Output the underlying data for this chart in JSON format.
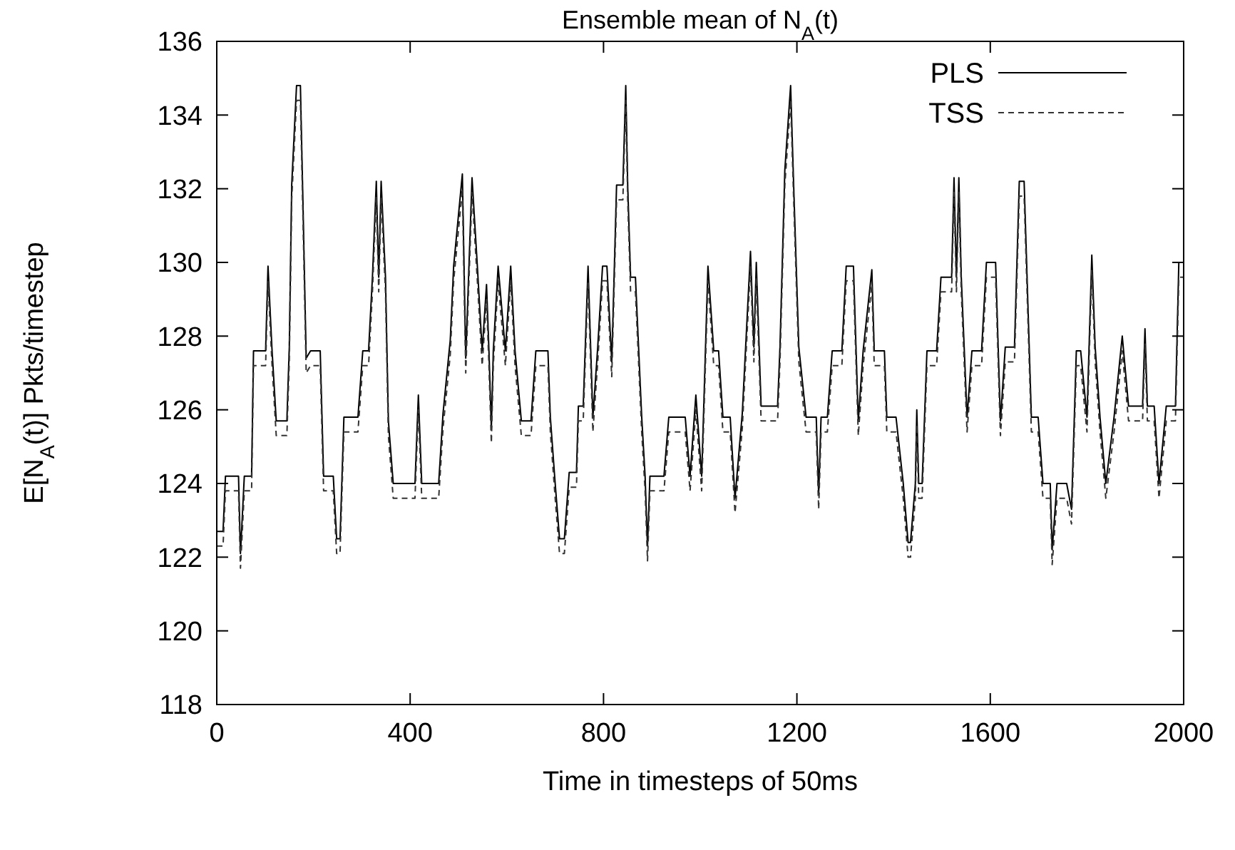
{
  "chart_data": {
    "type": "line",
    "title": "Ensemble mean of N$_{A}$(t)",
    "xlabel": "Time in timesteps of 50ms",
    "ylabel": "E[N$_{A}$(t)] Pkts/timestep",
    "x": [
      0,
      13,
      18,
      45,
      49,
      57,
      72,
      76,
      101,
      106,
      114,
      123,
      145,
      150,
      155,
      165,
      173,
      178,
      185,
      194,
      214,
      221,
      241,
      248,
      255,
      263,
      292,
      302,
      314,
      322,
      330,
      335,
      340,
      349,
      355,
      365,
      410,
      417,
      424,
      459,
      468,
      483,
      490,
      508,
      515,
      528,
      539,
      549,
      558,
      563,
      568,
      572,
      582,
      597,
      608,
      617,
      630,
      650,
      660,
      685,
      690,
      700,
      709,
      719,
      729,
      744,
      748,
      758,
      768,
      778,
      788,
      798,
      807,
      817,
      827,
      840,
      846,
      850,
      856,
      866,
      879,
      886,
      891,
      896,
      925,
      935,
      969,
      979,
      991,
      1003,
      1016,
      1028,
      1038,
      1047,
      1062,
      1072,
      1087,
      1104,
      1111,
      1116,
      1126,
      1160,
      1165,
      1175,
      1187,
      1194,
      1204,
      1219,
      1240,
      1245,
      1250,
      1263,
      1273,
      1293,
      1302,
      1317,
      1327,
      1337,
      1355,
      1360,
      1381,
      1386,
      1405,
      1420,
      1430,
      1435,
      1445,
      1448,
      1452,
      1459,
      1469,
      1489,
      1498,
      1520,
      1525,
      1530,
      1535,
      1540,
      1552,
      1562,
      1582,
      1592,
      1611,
      1621,
      1631,
      1650,
      1660,
      1670,
      1685,
      1699,
      1709,
      1724,
      1728,
      1738,
      1758,
      1768,
      1778,
      1787,
      1800,
      1810,
      1817,
      1827,
      1839,
      1856,
      1873,
      1886,
      1915,
      1920,
      1925,
      1939,
      1949,
      1964,
      1983,
      1990,
      2000
    ],
    "series": [
      {
        "name": "PLS",
        "color": "#000000",
        "line_style": "solid",
        "values": [
          122.7,
          122.7,
          124.2,
          124.2,
          122.1,
          124.2,
          124.2,
          127.6,
          127.6,
          129.9,
          127.7,
          125.7,
          125.7,
          127.7,
          132.1,
          134.8,
          134.8,
          131.8,
          127.4,
          127.6,
          127.6,
          124.2,
          124.2,
          122.5,
          122.5,
          125.8,
          125.8,
          127.6,
          127.6,
          129.6,
          132.2,
          129.6,
          132.2,
          129.6,
          125.7,
          124.0,
          124.0,
          126.4,
          124.0,
          124.0,
          125.9,
          127.9,
          129.9,
          132.4,
          127.4,
          132.3,
          129.9,
          127.6,
          129.4,
          127.6,
          125.5,
          127.6,
          129.9,
          127.6,
          129.9,
          127.6,
          125.7,
          125.7,
          127.6,
          127.6,
          125.8,
          124.0,
          122.5,
          122.5,
          124.3,
          124.3,
          126.1,
          126.1,
          129.9,
          125.8,
          127.7,
          129.9,
          129.9,
          127.3,
          132.1,
          132.1,
          134.8,
          132.1,
          129.6,
          129.6,
          125.8,
          124.2,
          122.3,
          124.2,
          124.2,
          125.8,
          125.8,
          124.2,
          126.4,
          124.2,
          129.9,
          127.6,
          127.6,
          125.8,
          125.8,
          123.6,
          125.9,
          130.3,
          127.7,
          130.0,
          126.1,
          126.1,
          127.7,
          132.5,
          134.8,
          131.8,
          127.7,
          125.8,
          125.8,
          123.7,
          125.8,
          125.8,
          127.6,
          127.6,
          129.9,
          129.9,
          125.7,
          127.6,
          129.8,
          127.6,
          127.6,
          125.8,
          125.8,
          124.0,
          122.4,
          122.4,
          124.0,
          126.0,
          124.0,
          124.0,
          127.6,
          127.6,
          129.6,
          129.6,
          132.3,
          129.6,
          132.3,
          129.6,
          125.8,
          127.6,
          127.6,
          130.0,
          130.0,
          125.7,
          127.7,
          127.7,
          132.2,
          132.2,
          125.8,
          125.8,
          124.0,
          124.0,
          122.2,
          124.0,
          124.0,
          123.3,
          127.6,
          127.6,
          125.8,
          130.2,
          127.7,
          125.8,
          124.0,
          125.8,
          128.0,
          126.1,
          126.1,
          128.2,
          126.1,
          126.1,
          124.0,
          126.1,
          126.1,
          130.0,
          130.0
        ]
      },
      {
        "name": "TSS",
        "color": "#333333",
        "line_style": "dashed",
        "values": [
          122.3,
          122.3,
          123.8,
          123.8,
          121.7,
          123.8,
          123.8,
          127.2,
          127.2,
          129.5,
          127.3,
          125.3,
          125.3,
          127.3,
          131.7,
          134.4,
          134.4,
          131.4,
          127.0,
          127.2,
          127.2,
          123.8,
          123.8,
          122.1,
          122.1,
          125.4,
          125.4,
          127.2,
          127.2,
          129.2,
          131.8,
          129.2,
          131.8,
          129.2,
          125.3,
          123.6,
          123.6,
          126.0,
          123.6,
          123.6,
          125.5,
          127.5,
          129.5,
          132.0,
          127.0,
          131.9,
          129.5,
          127.2,
          129.0,
          127.2,
          125.1,
          127.2,
          129.5,
          127.2,
          129.5,
          127.2,
          125.3,
          125.3,
          127.2,
          127.2,
          125.4,
          123.6,
          122.1,
          122.1,
          123.9,
          123.9,
          125.7,
          125.7,
          129.5,
          125.4,
          127.3,
          129.5,
          129.5,
          126.9,
          131.7,
          131.7,
          134.4,
          131.7,
          129.2,
          129.2,
          125.4,
          123.8,
          121.9,
          123.8,
          123.8,
          125.4,
          125.4,
          123.8,
          126.0,
          123.8,
          129.5,
          127.2,
          127.2,
          125.4,
          125.4,
          123.2,
          125.5,
          129.9,
          127.3,
          129.6,
          125.7,
          125.7,
          127.3,
          132.1,
          134.4,
          131.4,
          127.3,
          125.4,
          125.4,
          123.3,
          125.4,
          125.4,
          127.2,
          127.2,
          129.5,
          129.5,
          125.3,
          127.2,
          129.4,
          127.2,
          127.2,
          125.4,
          125.4,
          123.6,
          122.0,
          122.0,
          123.6,
          125.6,
          123.6,
          123.6,
          127.2,
          127.2,
          129.2,
          129.2,
          131.9,
          129.2,
          131.9,
          129.2,
          125.4,
          127.2,
          127.2,
          129.6,
          129.6,
          125.3,
          127.3,
          127.3,
          131.8,
          131.8,
          125.4,
          125.4,
          123.6,
          123.6,
          121.8,
          123.6,
          123.6,
          122.9,
          127.2,
          127.2,
          125.4,
          129.8,
          127.3,
          125.4,
          123.6,
          125.4,
          127.6,
          125.7,
          125.7,
          127.8,
          125.7,
          125.7,
          123.6,
          125.7,
          125.7,
          129.6,
          129.6
        ]
      }
    ],
    "xlim": [
      0,
      2000
    ],
    "xticks": [
      0,
      400,
      800,
      1200,
      1600,
      2000
    ],
    "ylim": [
      118,
      136
    ],
    "yticks": [
      118,
      120,
      122,
      124,
      126,
      128,
      130,
      132,
      134,
      136
    ],
    "grid": false,
    "legend": "top right"
  }
}
